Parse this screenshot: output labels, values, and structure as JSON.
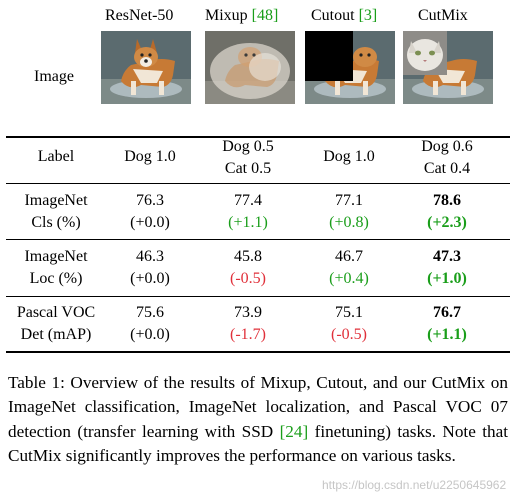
{
  "header": {
    "col1": "ResNet-50",
    "col2_text": "Mixup ",
    "col2_cite": "[48]",
    "col3_text": "Cutout ",
    "col3_cite": "[3]",
    "col4": "CutMix"
  },
  "row_image_label": "Image",
  "rows": {
    "label": {
      "name": "Label",
      "c1": "Dog 1.0",
      "c2a": "Dog 0.5",
      "c2b": "Cat 0.5",
      "c3": "Dog 1.0",
      "c4a": "Dog 0.6",
      "c4b": "Cat 0.4"
    },
    "cls": {
      "name_a": "ImageNet",
      "name_b": "Cls (%)",
      "c1a": "76.3",
      "c1b": "(+0.0)",
      "c2a": "77.4",
      "c2b": "(+1.1)",
      "c3a": "77.1",
      "c3b": "(+0.8)",
      "c4a": "78.6",
      "c4b": "(+2.3)"
    },
    "loc": {
      "name_a": "ImageNet",
      "name_b": "Loc (%)",
      "c1a": "46.3",
      "c1b": "(+0.0)",
      "c2a": "45.8",
      "c2b": "(-0.5)",
      "c3a": "46.7",
      "c3b": "(+0.4)",
      "c4a": "47.3",
      "c4b": "(+1.0)"
    },
    "det": {
      "name_a": "Pascal VOC",
      "name_b": "Det (mAP)",
      "c1a": "75.6",
      "c1b": "(+0.0)",
      "c2a": "73.9",
      "c2b": "(-1.7)",
      "c3a": "75.1",
      "c3b": "(-0.5)",
      "c4a": "76.7",
      "c4b": "(+1.1)"
    }
  },
  "caption": {
    "part1": "Table 1: Overview of the results of Mixup, Cutout, and our CutMix on ImageNet classification, ImageNet localization, and Pascal VOC 07 detection (transfer learning with SSD ",
    "cite": "[24]",
    "part2": " finetuning) tasks. Note that CutMix significantly improves the performance on various tasks."
  },
  "watermark": "https://blog.csdn.net/u2250645962",
  "colors": {
    "positive": "#1a9e1a",
    "negative": "#e0303a",
    "citation": "#1a9e1a"
  }
}
